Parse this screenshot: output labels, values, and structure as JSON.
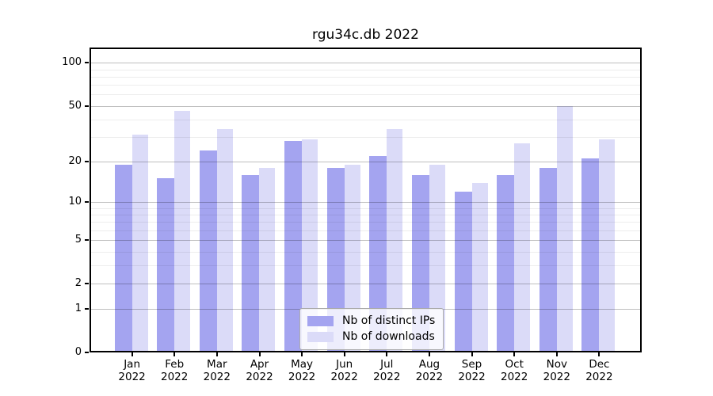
{
  "title": "rgu34c.db 2022",
  "legend": {
    "position": "lower center",
    "items": [
      {
        "label": "Nb of distinct IPs",
        "color": "#a4a4f0"
      },
      {
        "label": "Nb of downloads",
        "color": "#dbdbf8"
      }
    ]
  },
  "chart_data": {
    "type": "bar",
    "title": "rgu34c.db 2022",
    "categories": [
      "Jan",
      "Feb",
      "Mar",
      "Apr",
      "May",
      "Jun",
      "Jul",
      "Aug",
      "Sep",
      "Oct",
      "Nov",
      "Dec"
    ],
    "year_label": "2022",
    "series": [
      {
        "name": "Nb of distinct IPs",
        "color": "#a4a4f0",
        "values": [
          19,
          15,
          24,
          16,
          28,
          18,
          22,
          16,
          12,
          16,
          18,
          21
        ]
      },
      {
        "name": "Nb of downloads",
        "color": "#dbdbf8",
        "values": [
          31,
          46,
          34,
          18,
          29,
          19,
          34,
          19,
          14,
          27,
          50,
          29
        ]
      }
    ],
    "xlabel": "",
    "ylabel": "",
    "yscale": "log10(1+v)",
    "ylim": [
      0,
      128
    ],
    "yticks": [
      0,
      1,
      2,
      5,
      10,
      20,
      50,
      100
    ],
    "yticks_minor": [
      3,
      4,
      6,
      7,
      8,
      9,
      30,
      40,
      60,
      70,
      80,
      90
    ],
    "grid": true,
    "legend_position": "lower center"
  }
}
